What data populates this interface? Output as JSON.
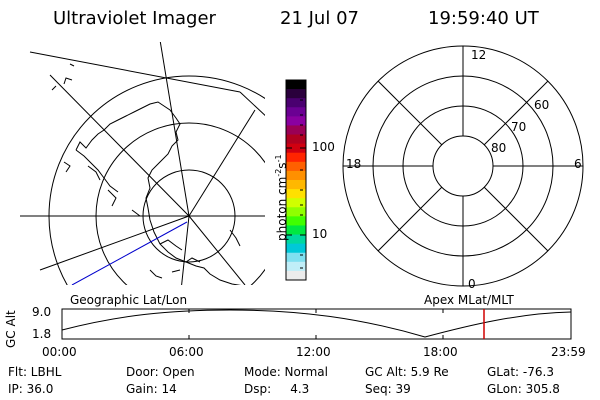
{
  "header": {
    "title": "Ultraviolet Imager",
    "date": "21 Jul 07",
    "time": "19:59:40 UT"
  },
  "left_panel": {
    "label": "Geographic Lat/Lon"
  },
  "colorbar": {
    "unit": "photon cm",
    "unit_exp1": "-2",
    "unit_mid": "s",
    "unit_exp2": "-1",
    "ticks": [
      "100",
      "10"
    ],
    "colors": [
      "#000000",
      "#2a003c",
      "#4a0070",
      "#6b0093",
      "#8a00a0",
      "#9a0055",
      "#b00020",
      "#d00010",
      "#ff2400",
      "#ff6000",
      "#ff9000",
      "#ffb800",
      "#ffe000",
      "#d0ff00",
      "#90ff00",
      "#40ff00",
      "#00e840",
      "#00d8a0",
      "#00c8d8",
      "#80e0f0",
      "#c0eef8",
      "#ececec"
    ]
  },
  "right_panel": {
    "label": "Apex MLat/MLT",
    "mlt": {
      "top": "12",
      "left": "18",
      "right": "6",
      "bottom": "0"
    },
    "lat_labels": [
      "60",
      "70",
      "80"
    ]
  },
  "altitude_plot": {
    "ylabel": "GC Alt",
    "yticks": [
      "9.0",
      "1.8"
    ],
    "xticks": [
      "00:00",
      "06:00",
      "12:00",
      "18:00",
      "23:59"
    ]
  },
  "status": {
    "filter": "Flt: LBHL",
    "ip": "IP: 36.0",
    "door": "Door: Open",
    "gain": "Gain: 14",
    "mode": "Mode: Normal",
    "dsp": "Dsp:     4.3",
    "gc_alt": "GC Alt: 5.9 Re",
    "seq": "Seq: 39",
    "glat": "GLat: -76.3",
    "glon": "GLon: 305.8"
  }
}
